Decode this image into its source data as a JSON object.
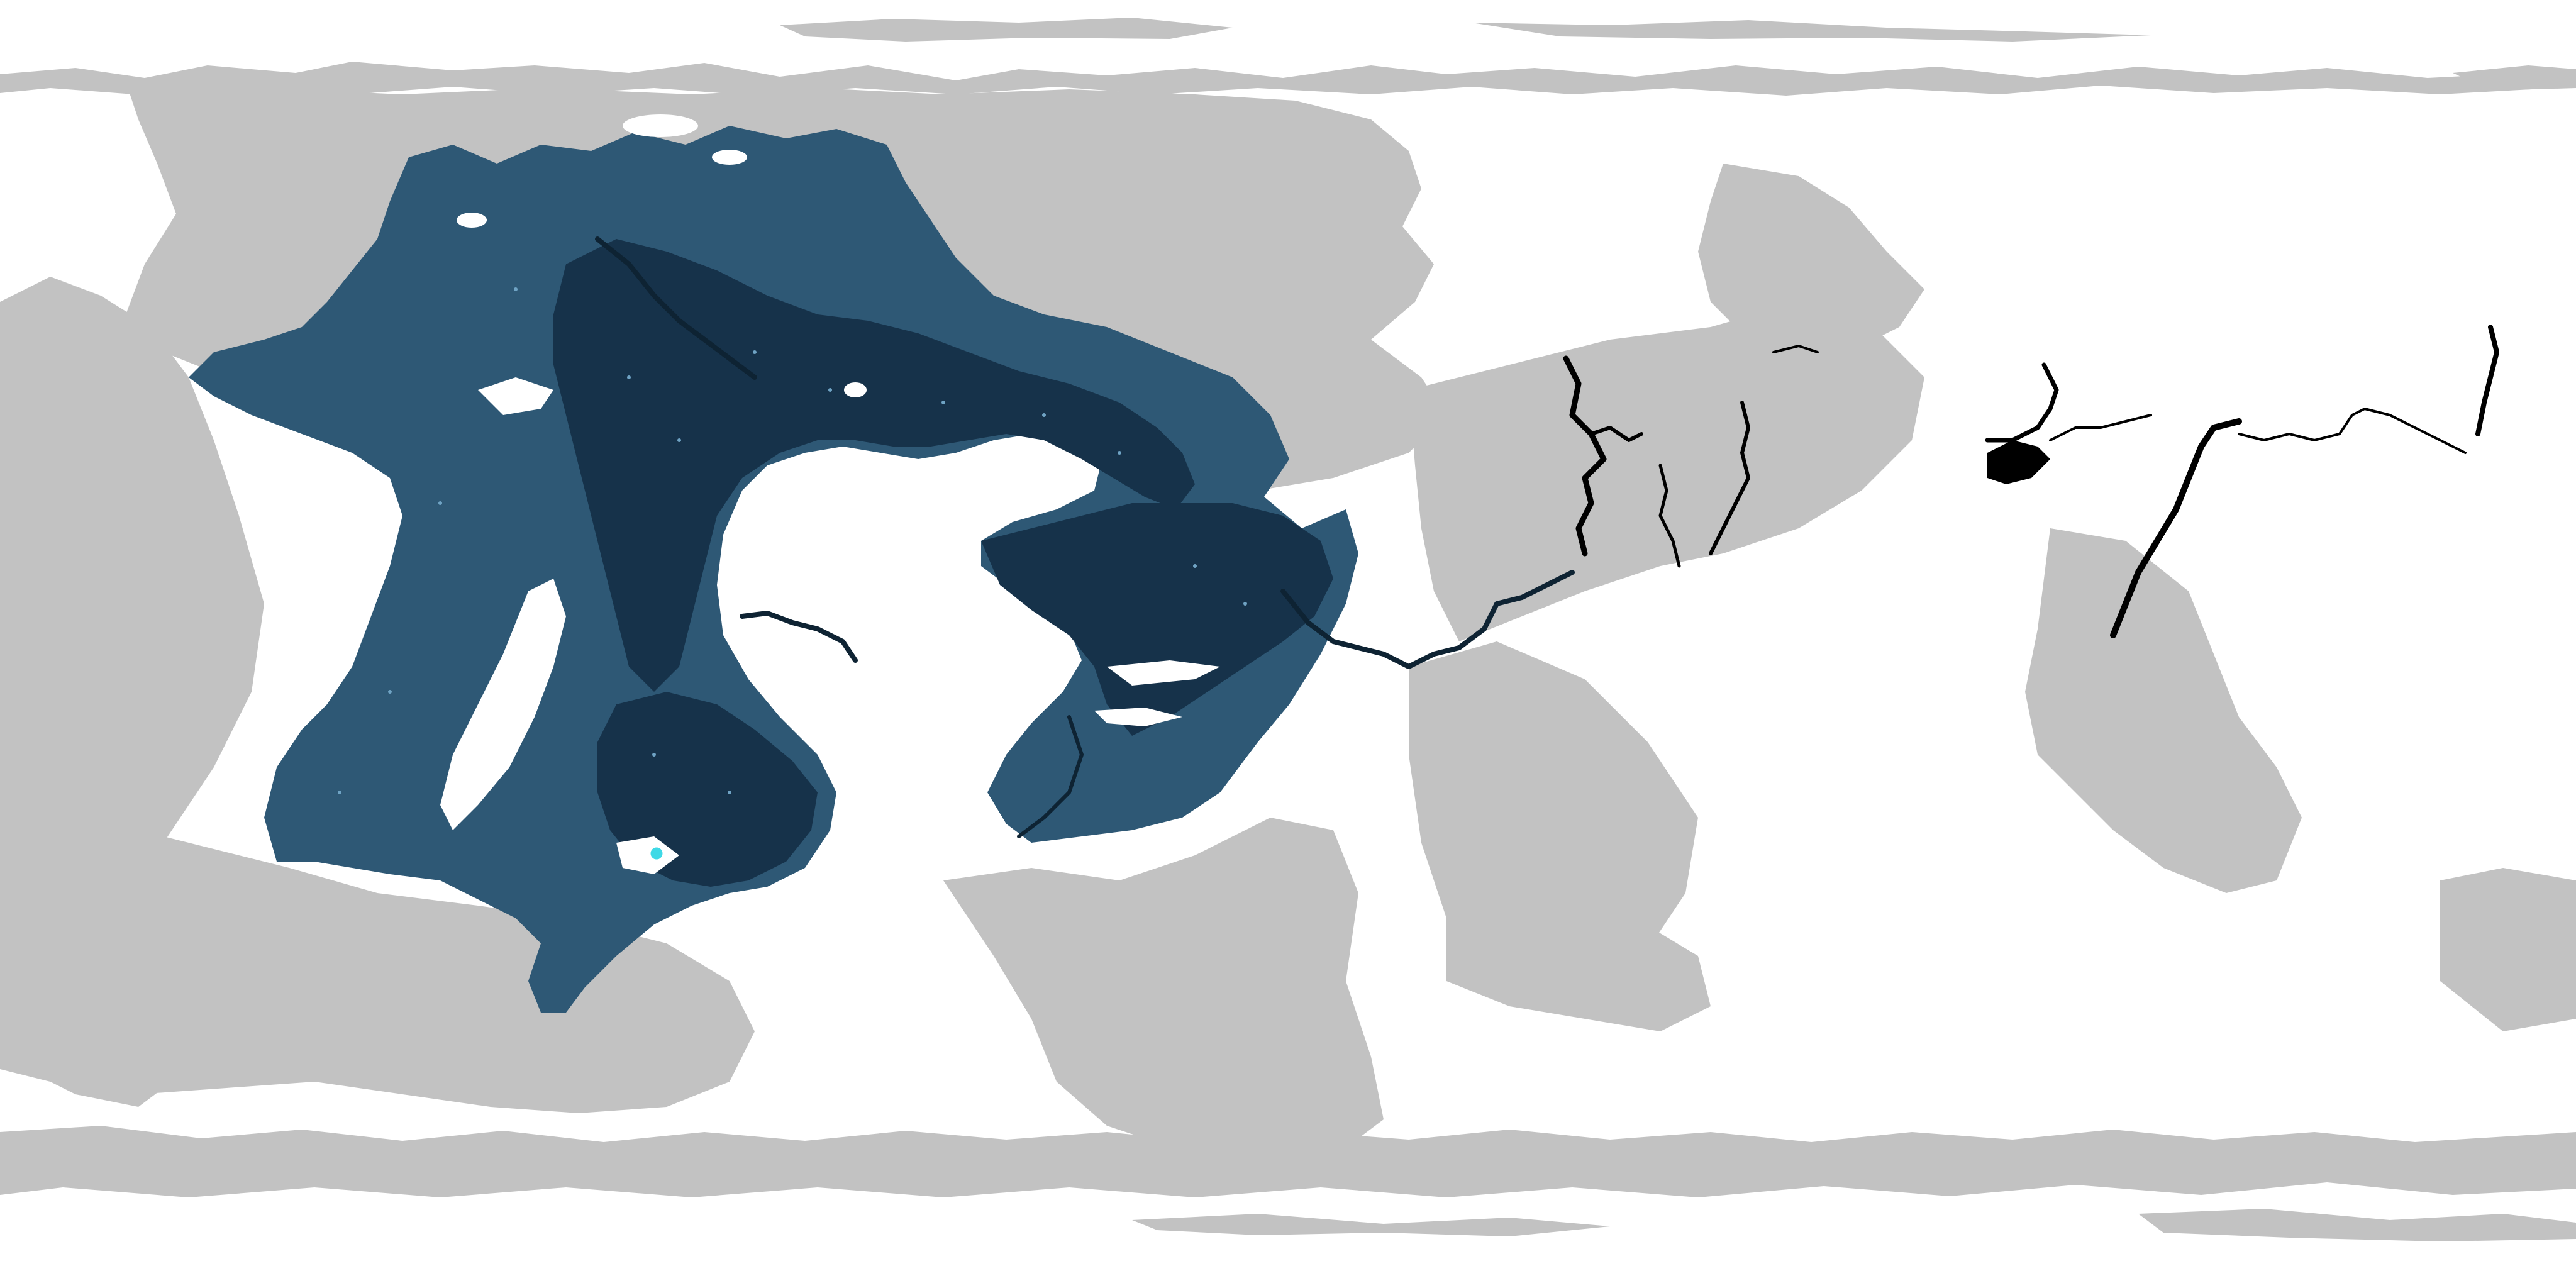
{
  "map": {
    "type": "equirectangular-terrain-map",
    "colors": {
      "background": "#ffffff",
      "terrain": "#c2c2c2",
      "basin_shallow": "#2e5875",
      "basin_deep": "#16324a",
      "channels": "#000000",
      "marker": "#3fd9e6"
    },
    "legend": null,
    "labels": []
  }
}
